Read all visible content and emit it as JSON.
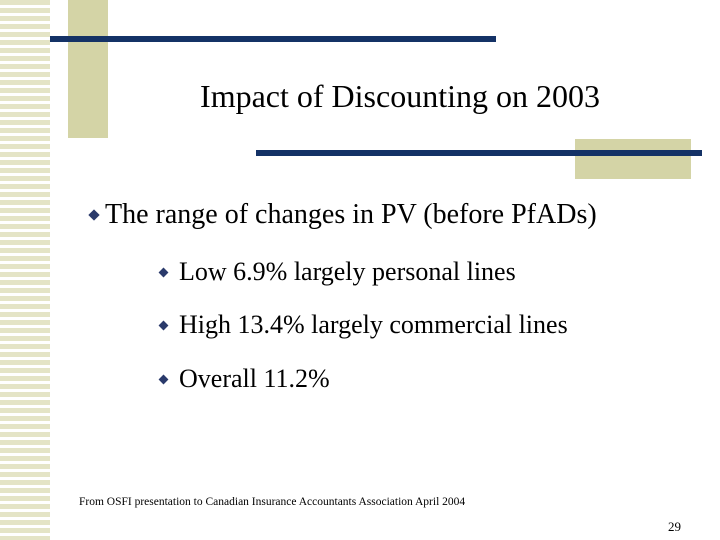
{
  "slide": {
    "title": "Impact of Discounting on 2003",
    "main_bullet": "The range of changes in PV (before PfADs)",
    "sub_bullets": [
      "Low 6.9% largely personal lines",
      "High 13.4% largely commercial lines",
      "Overall 11.2%"
    ],
    "footnote": "From OSFI presentation to Canadian Insurance Accountants Association April 2004",
    "page_number": "29"
  },
  "colors": {
    "accent_bar": "#143266",
    "khaki_block": "#d4d4a6",
    "stripe": "#e4e4c6",
    "bullet": "#2a3a6b"
  },
  "icons": {
    "bullet": "diamond-bullet-icon"
  }
}
